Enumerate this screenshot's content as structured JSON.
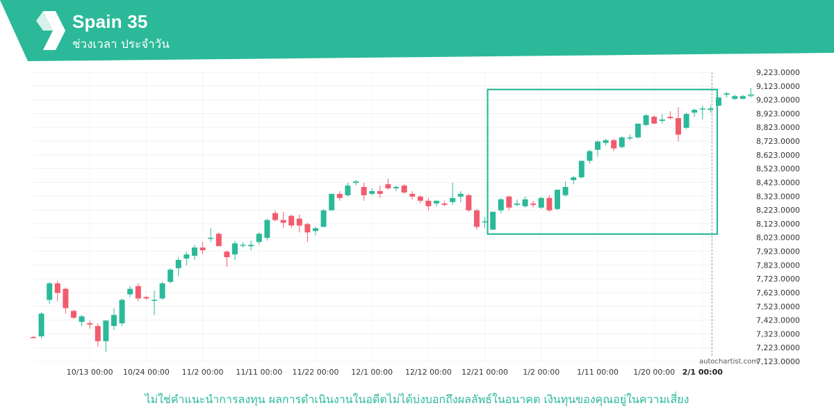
{
  "header": {
    "title": "Spain 35",
    "subtitle": "ช่วงเวลา ประจำวัน",
    "brand_color": "#2bb999"
  },
  "disclaimer": "ไม่ใช่คำแนะนำการลงทุน ผลการดำเนินงานในอดีตไม่ได้บ่งบอกถึงผลลัพธ์ในอนาคต เงินทุนของคุณอยู่ในความเสี่ยง",
  "watermark": "autochartist.com",
  "chart_data": {
    "type": "candlestick",
    "y_ticks": [
      "9,223.0000",
      "9,123.0000",
      "9,023.0000",
      "8,923.0000",
      "8,823.0000",
      "8,723.0000",
      "8,623.0000",
      "8,523.0000",
      "8,423.0000",
      "8,323.0000",
      "8,223.0000",
      "8,123.0000",
      "8,023.0000",
      "7,923.0000",
      "7,823.0000",
      "7,723.0000",
      "7,623.0000",
      "7,523.0000",
      "7,423.0000",
      "7,323.0000",
      "7,223.0000",
      "7,123.0000"
    ],
    "ylim": [
      7123,
      9223
    ],
    "x_ticks": [
      {
        "label": "10/13 00:00",
        "index": 7
      },
      {
        "label": "10/24 00:00",
        "index": 14
      },
      {
        "label": "11/2 00:00",
        "index": 21
      },
      {
        "label": "11/11 00:00",
        "index": 28
      },
      {
        "label": "11/22 00:00",
        "index": 35
      },
      {
        "label": "12/1 00:00",
        "index": 42
      },
      {
        "label": "12/12 00:00",
        "index": 49
      },
      {
        "label": "12/21 00:00",
        "index": 56
      },
      {
        "label": "1/2 00:00",
        "index": 63
      },
      {
        "label": "1/11 00:00",
        "index": 70
      },
      {
        "label": "1/20 00:00",
        "index": 77
      },
      {
        "label": "2/1 00:00",
        "index": 83,
        "bold": true
      }
    ],
    "up_color": "#2bb999",
    "down_color": "#f25b6e",
    "pattern_box": {
      "start_index": 56,
      "end_index": 85,
      "y_low": 8048,
      "y_high": 9098,
      "color": "#2bb999"
    },
    "current_index": 84,
    "candles": [
      [
        7300,
        7310,
        7290,
        7295
      ],
      [
        7305,
        7480,
        7290,
        7470
      ],
      [
        7570,
        7700,
        7540,
        7690
      ],
      [
        7690,
        7710,
        7560,
        7620
      ],
      [
        7650,
        7660,
        7470,
        7510
      ],
      [
        7490,
        7500,
        7430,
        7440
      ],
      [
        7410,
        7460,
        7380,
        7450
      ],
      [
        7400,
        7420,
        7360,
        7390
      ],
      [
        7380,
        7400,
        7230,
        7270
      ],
      [
        7270,
        7420,
        7190,
        7420
      ],
      [
        7380,
        7510,
        7350,
        7460
      ],
      [
        7400,
        7580,
        7380,
        7570
      ],
      [
        7610,
        7670,
        7590,
        7650
      ],
      [
        7670,
        7690,
        7560,
        7580
      ],
      [
        7590,
        7600,
        7570,
        7580
      ],
      [
        7570,
        7640,
        7460,
        7570
      ],
      [
        7580,
        7700,
        7570,
        7690
      ],
      [
        7700,
        7800,
        7690,
        7790
      ],
      [
        7800,
        7880,
        7740,
        7860
      ],
      [
        7870,
        7920,
        7820,
        7900
      ],
      [
        7890,
        7970,
        7860,
        7950
      ],
      [
        7950,
        7990,
        7900,
        7930
      ],
      [
        8020,
        8090,
        7990,
        8020
      ],
      [
        8050,
        8060,
        7960,
        7960
      ],
      [
        7920,
        7930,
        7810,
        7880
      ],
      [
        7900,
        8000,
        7860,
        7980
      ],
      [
        7970,
        7990,
        7950,
        7970
      ],
      [
        7960,
        8000,
        7930,
        7970
      ],
      [
        7990,
        8060,
        7970,
        8050
      ],
      [
        8020,
        8160,
        8000,
        8150
      ],
      [
        8200,
        8220,
        8140,
        8150
      ],
      [
        8150,
        8210,
        8090,
        8130
      ],
      [
        8180,
        8190,
        8090,
        8110
      ],
      [
        8160,
        8190,
        8060,
        8110
      ],
      [
        8120,
        8130,
        7990,
        8060
      ],
      [
        8070,
        8100,
        8040,
        8090
      ],
      [
        8100,
        8230,
        8100,
        8220
      ],
      [
        8220,
        8340,
        8220,
        8340
      ],
      [
        8340,
        8360,
        8290,
        8310
      ],
      [
        8330,
        8420,
        8320,
        8400
      ],
      [
        8420,
        8440,
        8400,
        8430
      ],
      [
        8390,
        8420,
        8290,
        8330
      ],
      [
        8340,
        8380,
        8330,
        8360
      ],
      [
        8360,
        8400,
        8310,
        8340
      ],
      [
        8410,
        8450,
        8370,
        8380
      ],
      [
        8380,
        8400,
        8360,
        8390
      ],
      [
        8400,
        8410,
        8340,
        8350
      ],
      [
        8340,
        8360,
        8300,
        8320
      ],
      [
        8320,
        8330,
        8270,
        8290
      ],
      [
        8290,
        8310,
        8220,
        8250
      ],
      [
        8270,
        8290,
        8250,
        8290
      ],
      [
        8270,
        8290,
        8250,
        8260
      ],
      [
        8280,
        8420,
        8260,
        8310
      ],
      [
        8320,
        8360,
        8280,
        8340
      ],
      [
        8330,
        8340,
        8210,
        8220
      ],
      [
        8220,
        8230,
        8080,
        8100
      ],
      [
        8140,
        8170,
        8090,
        8140
      ],
      [
        8080,
        8210,
        8080,
        8210
      ],
      [
        8220,
        8310,
        8200,
        8300
      ],
      [
        8320,
        8330,
        8220,
        8240
      ],
      [
        8260,
        8300,
        8250,
        8270
      ],
      [
        8250,
        8320,
        8240,
        8300
      ],
      [
        8270,
        8290,
        8240,
        8260
      ],
      [
        8240,
        8320,
        8230,
        8310
      ],
      [
        8310,
        8330,
        8210,
        8220
      ],
      [
        8230,
        8370,
        8220,
        8370
      ],
      [
        8330,
        8430,
        8320,
        8390
      ],
      [
        8440,
        8470,
        8410,
        8460
      ],
      [
        8460,
        8580,
        8450,
        8580
      ],
      [
        8580,
        8660,
        8560,
        8650
      ],
      [
        8660,
        8730,
        8610,
        8720
      ],
      [
        8710,
        8740,
        8690,
        8730
      ],
      [
        8730,
        8740,
        8650,
        8670
      ],
      [
        8680,
        8760,
        8670,
        8750
      ],
      [
        8750,
        8770,
        8730,
        8750
      ],
      [
        8750,
        8850,
        8740,
        8850
      ],
      [
        8840,
        8920,
        8830,
        8910
      ],
      [
        8900,
        8910,
        8850,
        8850
      ],
      [
        8870,
        8920,
        8850,
        8880
      ],
      [
        8900,
        8940,
        8880,
        8890
      ],
      [
        8890,
        8970,
        8720,
        8770
      ],
      [
        8820,
        8930,
        8810,
        8920
      ],
      [
        8930,
        8960,
        8900,
        8950
      ],
      [
        8960,
        8980,
        8880,
        8960
      ],
      [
        8950,
        8980,
        8930,
        8960
      ],
      [
        8980,
        9040,
        8980,
        9040
      ],
      [
        9060,
        9080,
        9040,
        9070
      ],
      [
        9030,
        9060,
        9020,
        9050
      ],
      [
        9030,
        9060,
        9030,
        9050
      ],
      [
        9060,
        9110,
        9040,
        9060
      ]
    ]
  }
}
